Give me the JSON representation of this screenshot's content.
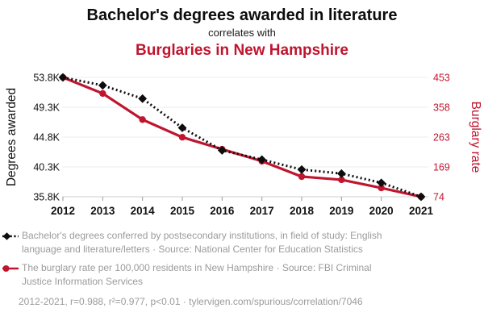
{
  "colors": {
    "accent_red": "#c0152f",
    "series_black": "#0d0d0d",
    "title_text": "#0d0d0d",
    "legend_text": "#9b9b9b",
    "gridline": "#ededed",
    "axis_line": "#cfcfcf",
    "tick_mark": "#9a9a9a",
    "tick_label": "#111111"
  },
  "chart_data": {
    "type": "line",
    "title_top": "Bachelor's degrees awarded in literature",
    "title_connector": "correlates with",
    "title_bottom": "Burglaries in New Hampshire",
    "x": [
      2012,
      2013,
      2014,
      2015,
      2016,
      2017,
      2018,
      2019,
      2020,
      2021
    ],
    "x_ticks": [
      "2012",
      "2013",
      "2014",
      "2015",
      "2016",
      "2017",
      "2018",
      "2019",
      "2020",
      "2021"
    ],
    "grid": true,
    "legend_position": "bottom",
    "series": [
      {
        "name": "Degrees awarded",
        "axis": "left",
        "color": "#0d0d0d",
        "line_style": "dotted",
        "marker": "diamond",
        "values": [
          53800,
          52600,
          50600,
          46200,
          42800,
          41400,
          39900,
          39300,
          37900,
          35800
        ]
      },
      {
        "name": "Burglary rate",
        "axis": "right",
        "color": "#c0152f",
        "line_style": "solid",
        "marker": "circle",
        "values": [
          453,
          402,
          319,
          263,
          225,
          187,
          138,
          128,
          102,
          74
        ]
      }
    ],
    "left_axis": {
      "label": "Degrees awarded",
      "ticks": [
        "53.8K",
        "49.3K",
        "44.8K",
        "40.3K",
        "35.8K"
      ],
      "tick_values": [
        53800,
        49300,
        44800,
        40300,
        35800
      ],
      "range": [
        35800,
        53800
      ]
    },
    "right_axis": {
      "label": "Burglary rate",
      "ticks": [
        "453",
        "358",
        "263",
        "169",
        "74"
      ],
      "tick_values": [
        453,
        358,
        263,
        169,
        74
      ],
      "range": [
        74,
        453
      ]
    },
    "legend": [
      "Bachelor's degrees conferred by postsecondary institutions, in field of study: English language and literature/letters · Source: National Center for Education Statistics",
      "The burglary rate per 100,000 residents in New Hampshire · Source: FBI Criminal Justice Information Services"
    ],
    "footnote": "2012-2021, r=0.988, r²=0.977, p<0.01 · tylervigen.com/spurious/correlation/7046"
  }
}
